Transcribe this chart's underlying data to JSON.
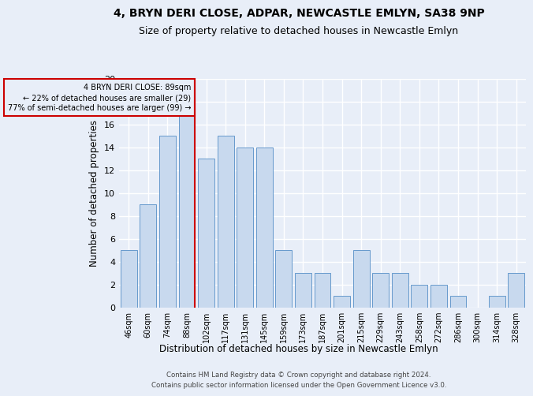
{
  "title1": "4, BRYN DERI CLOSE, ADPAR, NEWCASTLE EMLYN, SA38 9NP",
  "title2": "Size of property relative to detached houses in Newcastle Emlyn",
  "xlabel": "Distribution of detached houses by size in Newcastle Emlyn",
  "ylabel": "Number of detached properties",
  "categories": [
    "46sqm",
    "60sqm",
    "74sqm",
    "88sqm",
    "102sqm",
    "117sqm",
    "131sqm",
    "145sqm",
    "159sqm",
    "173sqm",
    "187sqm",
    "201sqm",
    "215sqm",
    "229sqm",
    "243sqm",
    "258sqm",
    "272sqm",
    "286sqm",
    "300sqm",
    "314sqm",
    "328sqm"
  ],
  "values": [
    5,
    9,
    15,
    17,
    13,
    15,
    14,
    14,
    5,
    3,
    3,
    1,
    5,
    3,
    3,
    2,
    2,
    1,
    0,
    1,
    3
  ],
  "bar_color": "#c8d9ee",
  "bar_edge_color": "#6699cc",
  "red_line_index": 3,
  "annotation_line1": "4 BRYN DERI CLOSE: 89sqm",
  "annotation_line2": "← 22% of detached houses are smaller (29)",
  "annotation_line3": "77% of semi-detached houses are larger (99) →",
  "vline_color": "#cc0000",
  "ylim": [
    0,
    20
  ],
  "yticks": [
    0,
    2,
    4,
    6,
    8,
    10,
    12,
    14,
    16,
    18,
    20
  ],
  "footer1": "Contains HM Land Registry data © Crown copyright and database right 2024.",
  "footer2": "Contains public sector information licensed under the Open Government Licence v3.0.",
  "bg_color": "#e8eef8",
  "grid_color": "#ffffff",
  "title1_fontsize": 10,
  "title2_fontsize": 9
}
